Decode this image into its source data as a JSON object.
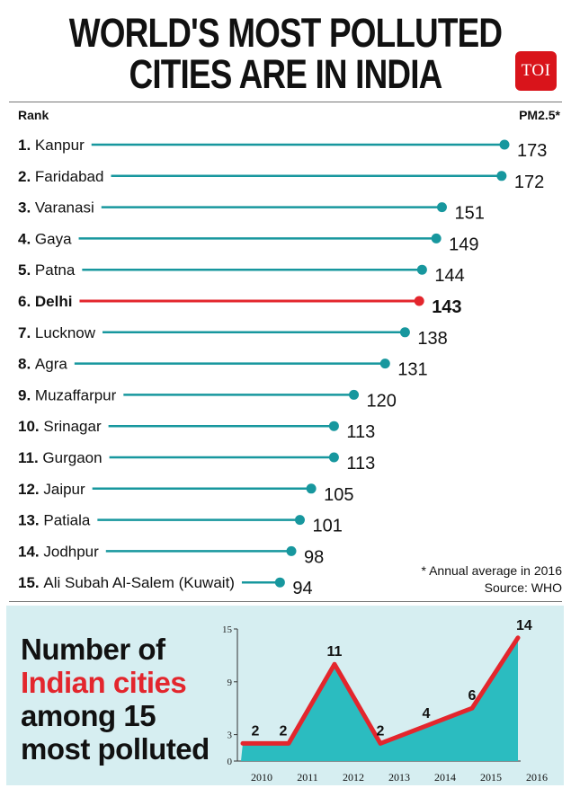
{
  "header": {
    "title_line1": "WORLD'S MOST POLLUTED",
    "title_line2": "CITIES ARE IN INDIA",
    "logo_text": "TOI"
  },
  "chart_data": [
    {
      "type": "bar",
      "orientation": "horizontal-lollipop",
      "xlabel": "Rank",
      "ylabel": "PM2.5*",
      "categories": [
        "Kanpur",
        "Faridabad",
        "Varanasi",
        "Gaya",
        "Patna",
        "Delhi",
        "Lucknow",
        "Agra",
        "Muzaffarpur",
        "Srinagar",
        "Gurgaon",
        "Jaipur",
        "Patiala",
        "Jodhpur",
        "Ali Subah Al-Salem (Kuwait)"
      ],
      "ranks": [
        "1.",
        "2.",
        "3.",
        "4.",
        "5.",
        "6.",
        "7.",
        "8.",
        "9.",
        "10.",
        "11.",
        "12.",
        "13.",
        "14.",
        "15."
      ],
      "values": [
        173,
        172,
        151,
        149,
        144,
        143,
        138,
        131,
        120,
        113,
        113,
        105,
        101,
        98,
        94
      ],
      "highlight": "Delhi",
      "colors": {
        "default": "#17979e",
        "highlight": "#e3262d"
      }
    },
    {
      "type": "area",
      "x": [
        "2010",
        "2011",
        "2012",
        "2013",
        "2014",
        "2015",
        "2016"
      ],
      "values": [
        2,
        2,
        11,
        2,
        4,
        6,
        14
      ],
      "yticks": [
        "0",
        "3",
        "9",
        "15"
      ],
      "ylim": [
        0,
        15
      ],
      "colors": {
        "fill": "#2bbcc0",
        "line": "#e3262d"
      }
    }
  ],
  "footnote": {
    "note": "* Annual average in 2016",
    "source": "Source: WHO"
  },
  "bottom": {
    "line1": "Number of",
    "line2": "Indian cities",
    "line3": "among 15",
    "line4": "most polluted"
  }
}
